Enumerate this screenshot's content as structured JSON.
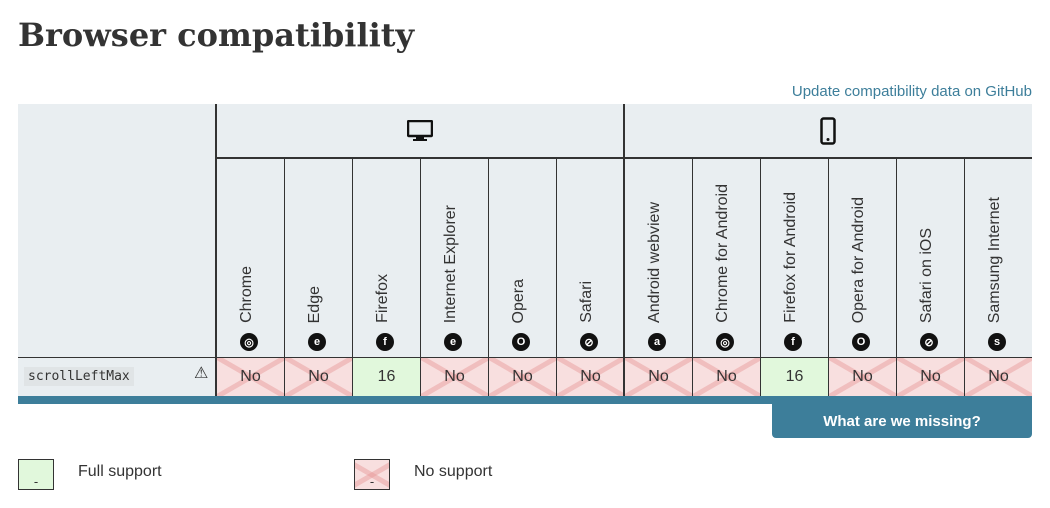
{
  "title": "Browser compatibility",
  "github_link": "Update compatibility data on GitHub",
  "groups": {
    "desktop_icon": "desktop-icon",
    "mobile_icon": "mobile-icon"
  },
  "browsers": [
    {
      "name": "Chrome",
      "icon": "◎",
      "support": "No"
    },
    {
      "name": "Edge",
      "icon": "e",
      "support": "No"
    },
    {
      "name": "Firefox",
      "icon": "f",
      "support": "16"
    },
    {
      "name": "Internet Explorer",
      "icon": "e",
      "support": "No"
    },
    {
      "name": "Opera",
      "icon": "O",
      "support": "No"
    },
    {
      "name": "Safari",
      "icon": "⊘",
      "support": "No"
    },
    {
      "name": "Android webview",
      "icon": "a",
      "support": "No"
    },
    {
      "name": "Chrome for Android",
      "icon": "◎",
      "support": "No"
    },
    {
      "name": "Firefox for Android",
      "icon": "f",
      "support": "16"
    },
    {
      "name": "Opera for Android",
      "icon": "O",
      "support": "No"
    },
    {
      "name": "Safari on iOS",
      "icon": "⊘",
      "support": "No"
    },
    {
      "name": "Samsung Internet",
      "icon": "s",
      "support": "No"
    }
  ],
  "feature": "scrollLeftMax",
  "warning_icon": "⚠",
  "missing_button": "What are we missing?",
  "legend": {
    "full": "Full support",
    "none": "No support",
    "marker": "-"
  },
  "colors": {
    "accent": "#3d7e9a",
    "yes": "#e1f8dc",
    "no": "#f8dfdf"
  }
}
